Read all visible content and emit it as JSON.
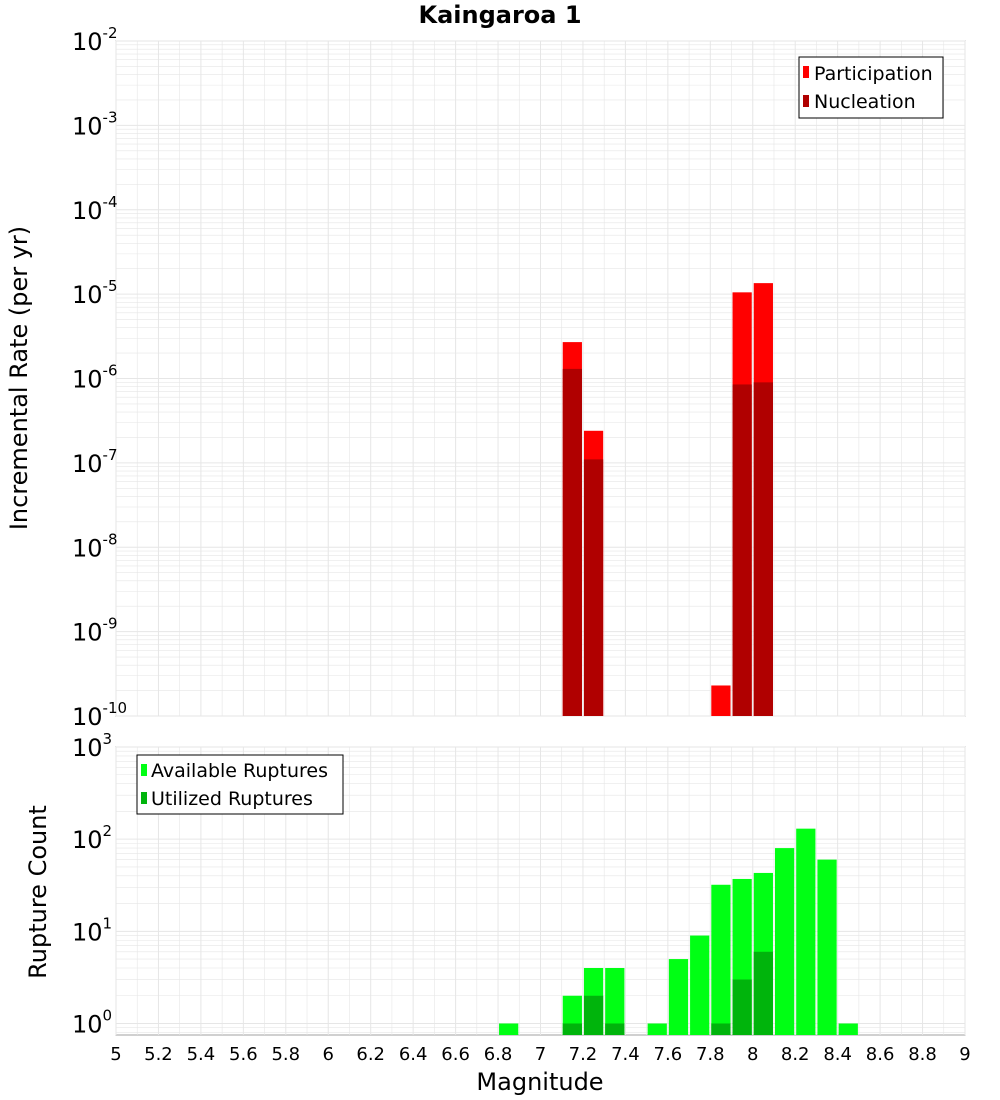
{
  "colors": {
    "participation": "#ff0000",
    "nucleation": "#b00000",
    "available": "#00ff14",
    "utilized": "#00b40c",
    "grid": "#e6e6e6",
    "frame": "#a0a0a0"
  },
  "chart_data": [
    {
      "type": "bar",
      "title": "Kaingaroa 1",
      "xlabel": "",
      "ylabel": "Incremental Rate (per yr)",
      "xlim": [
        5,
        9
      ],
      "yscale": "log",
      "ylim": [
        1e-10,
        0.01
      ],
      "ytick_exponents": [
        -10,
        -9,
        -8,
        -7,
        -6,
        -5,
        -4,
        -3,
        -2
      ],
      "bar_width": 0.1,
      "grid": true,
      "legend": {
        "position": "top-right",
        "entries": [
          "Participation",
          "Nucleation"
        ]
      },
      "series": [
        {
          "name": "Participation",
          "x": [
            7.15,
            7.25,
            7.85,
            7.95,
            8.05
          ],
          "values": [
            2.7e-06,
            2.4e-07,
            2.3e-10,
            1.05e-05,
            1.35e-05
          ]
        },
        {
          "name": "Nucleation",
          "x": [
            7.15,
            7.25,
            7.95,
            8.05
          ],
          "values": [
            1.3e-06,
            1.1e-07,
            8.5e-07,
            9e-07
          ]
        }
      ]
    },
    {
      "type": "bar",
      "title": "",
      "xlabel": "Magnitude",
      "ylabel": "Rupture Count",
      "xlim": [
        5,
        9
      ],
      "xticks": [
        "5",
        "5.2",
        "5.4",
        "5.6",
        "5.8",
        "6",
        "6.2",
        "6.4",
        "6.6",
        "6.8",
        "7",
        "7.2",
        "7.4",
        "7.6",
        "7.8",
        "8",
        "8.2",
        "8.4",
        "8.6",
        "8.8",
        "9"
      ],
      "yscale": "log",
      "ylim": [
        0.75,
        1000
      ],
      "ytick_exponents": [
        0,
        1,
        2,
        3
      ],
      "bar_width": 0.1,
      "grid": true,
      "legend": {
        "position": "top-left",
        "entries": [
          "Available Ruptures",
          "Utilized Ruptures"
        ]
      },
      "series": [
        {
          "name": "Available Ruptures",
          "x": [
            6.85,
            7.15,
            7.25,
            7.35,
            7.55,
            7.65,
            7.75,
            7.85,
            7.95,
            8.05,
            8.15,
            8.25,
            8.35,
            8.45
          ],
          "values": [
            1,
            2,
            4,
            4,
            1,
            5,
            9,
            32,
            37,
            43,
            80,
            130,
            60,
            1
          ]
        },
        {
          "name": "Utilized Ruptures",
          "x": [
            7.15,
            7.25,
            7.35,
            7.85,
            7.95,
            8.05
          ],
          "values": [
            1,
            2,
            1,
            1,
            3,
            6
          ]
        }
      ]
    }
  ]
}
